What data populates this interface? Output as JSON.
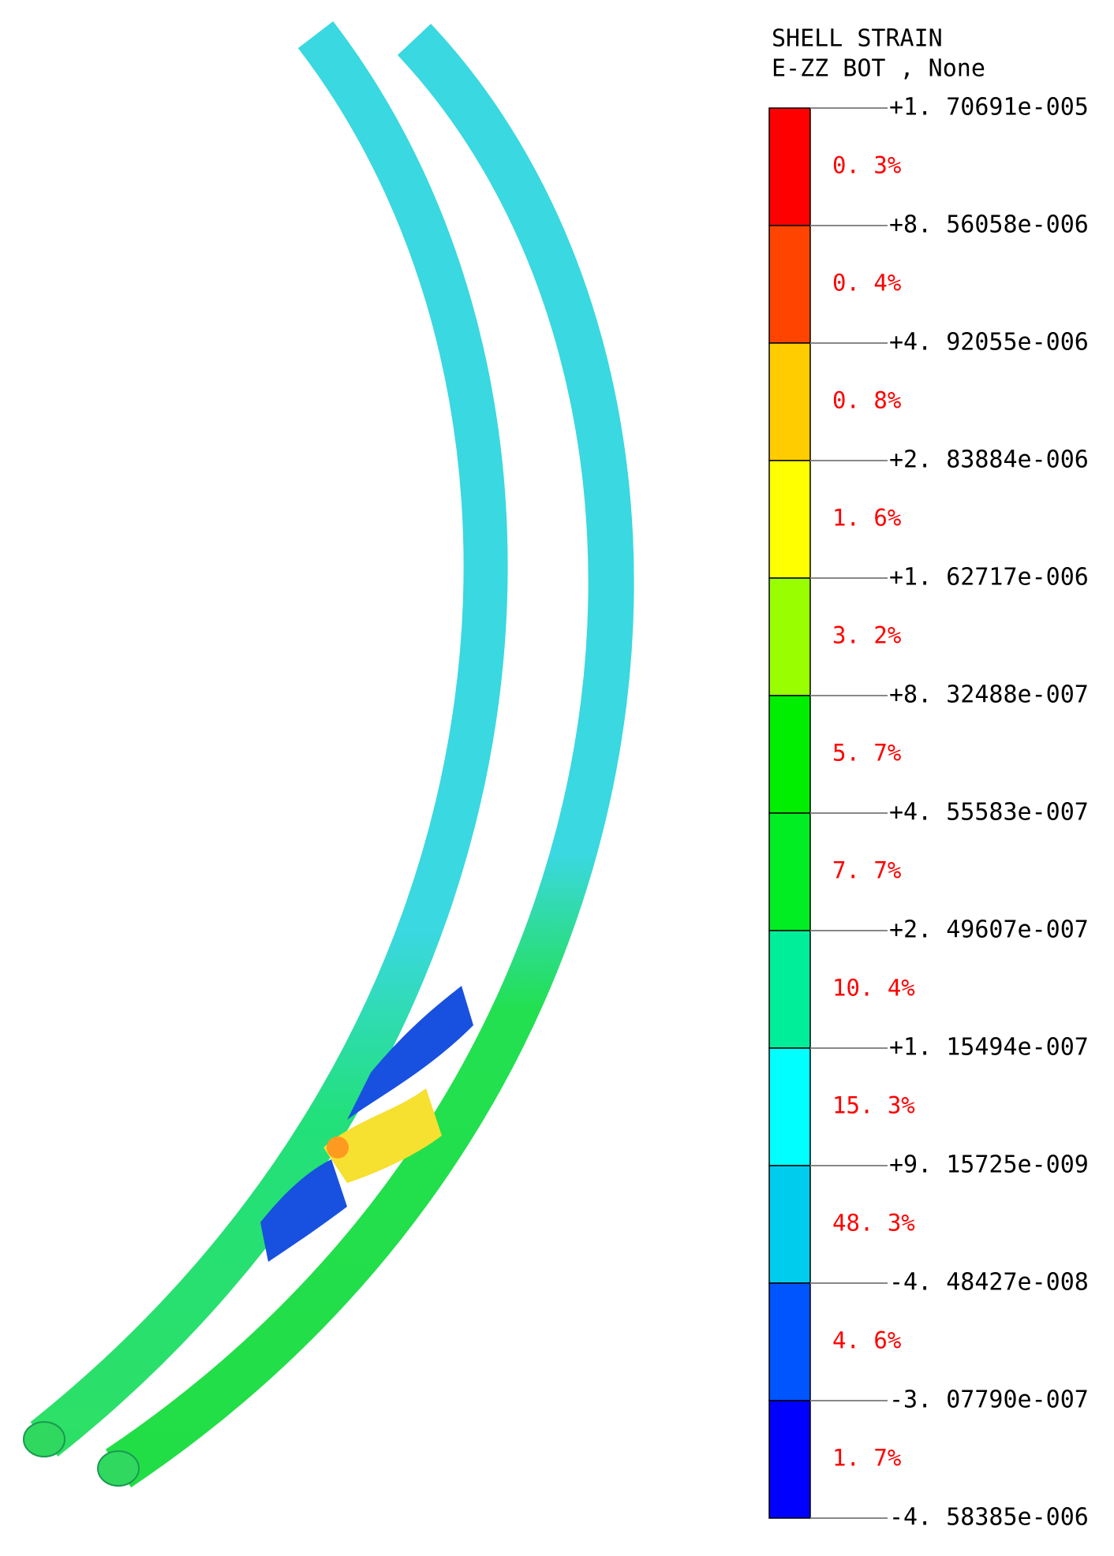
{
  "legend": {
    "title": [
      "SHELL STRAIN",
      "E-ZZ BOT , None"
    ],
    "levels": [
      "+1. 70691e-005",
      "+8. 56058e-006",
      "+4. 92055e-006",
      "+2. 83884e-006",
      "+1. 62717e-006",
      "+8. 32488e-007",
      "+4. 55583e-007",
      "+2. 49607e-007",
      "+1. 15494e-007",
      "+9. 15725e-009",
      "-4. 48427e-008",
      "-3. 07790e-007",
      "-4. 58385e-006"
    ],
    "bands": [
      {
        "percent": "0. 3%",
        "color": "#ff0000"
      },
      {
        "percent": "0. 4%",
        "color": "#ff4400"
      },
      {
        "percent": "0. 8%",
        "color": "#ffcc00"
      },
      {
        "percent": "1. 6%",
        "color": "#ffff00"
      },
      {
        "percent": "3. 2%",
        "color": "#99ff00"
      },
      {
        "percent": "5. 7%",
        "color": "#00ee00"
      },
      {
        "percent": "7. 7%",
        "color": "#00ee22"
      },
      {
        "percent": "10. 4%",
        "color": "#00ee99"
      },
      {
        "percent": "15. 3%",
        "color": "#00ffff"
      },
      {
        "percent": "48. 3%",
        "color": "#00ccee"
      },
      {
        "percent": "4. 6%",
        "color": "#0055ff"
      },
      {
        "percent": "1. 7%",
        "color": "#0000ff"
      }
    ]
  }
}
